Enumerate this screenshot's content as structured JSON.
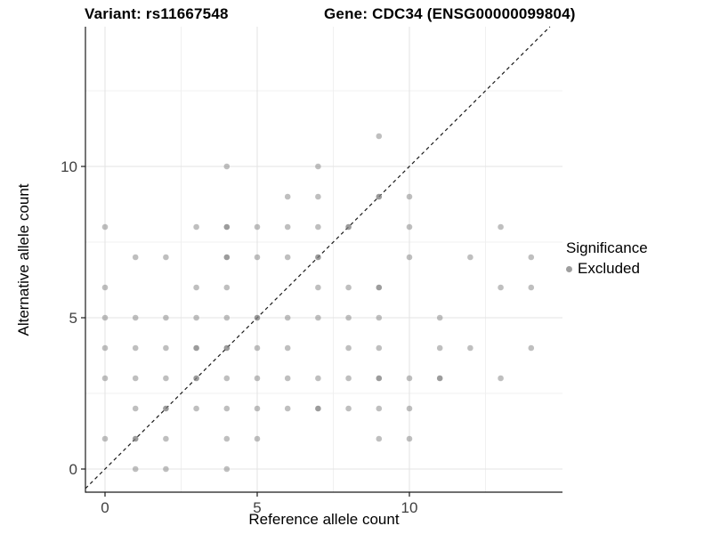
{
  "header": {
    "variant_title": "Variant: rs11667548",
    "gene_title": "Gene: CDC34 (ENSG00000099804)"
  },
  "legend": {
    "title": "Significance",
    "entries": [
      {
        "label": "Excluded",
        "color": "#9e9e9e"
      }
    ]
  },
  "colors": {
    "background": "#ffffff",
    "grid_major": "#e3e3e3",
    "grid_minor": "#f0f0f0",
    "axis_line": "#1a1a1a",
    "tick_text": "#404040",
    "identity_line": "#1a1a1a",
    "point": "#808080"
  },
  "chart_data": {
    "type": "scatter",
    "title_left": "Variant: rs11667548",
    "title_right": "Gene: CDC34 (ENSG00000099804)",
    "xlabel": "Reference allele count",
    "ylabel": "Alternative allele count",
    "xlim": [
      -0.64,
      15.04
    ],
    "ylim": [
      -0.76,
      14.62
    ],
    "x_tick_values": [
      0,
      5,
      10
    ],
    "y_tick_values": [
      0,
      5,
      10
    ],
    "x_minor_ticks": [
      2.5,
      7.5,
      12.5
    ],
    "y_minor_ticks": [
      2.5,
      7.5,
      12.5
    ],
    "grid": true,
    "legend_position": "right",
    "identity_line": {
      "equation": "y = x",
      "style": "dashed",
      "color": "#1a1a1a"
    },
    "series": [
      {
        "name": "Excluded",
        "color": "#808080",
        "opacity": 0.5,
        "points": [
          [
            1,
            0
          ],
          [
            2,
            0
          ],
          [
            4,
            0
          ],
          [
            0,
            1
          ],
          [
            1,
            1
          ],
          [
            2,
            1
          ],
          [
            4,
            1
          ],
          [
            5,
            1
          ],
          [
            9,
            1
          ],
          [
            10,
            1
          ],
          [
            1,
            2
          ],
          [
            2,
            2
          ],
          [
            3,
            2
          ],
          [
            4,
            2
          ],
          [
            5,
            2
          ],
          [
            6,
            2
          ],
          [
            7,
            2
          ],
          [
            8,
            2
          ],
          [
            9,
            2
          ],
          [
            10,
            2
          ],
          [
            0,
            3
          ],
          [
            1,
            3
          ],
          [
            2,
            3
          ],
          [
            3,
            3
          ],
          [
            4,
            3
          ],
          [
            5,
            3
          ],
          [
            6,
            3
          ],
          [
            7,
            3
          ],
          [
            8,
            3
          ],
          [
            9,
            3
          ],
          [
            10,
            3
          ],
          [
            11,
            3
          ],
          [
            13,
            3
          ],
          [
            0,
            4
          ],
          [
            1,
            4
          ],
          [
            2,
            4
          ],
          [
            3,
            4
          ],
          [
            4,
            4
          ],
          [
            5,
            4
          ],
          [
            6,
            4
          ],
          [
            8,
            4
          ],
          [
            9,
            4
          ],
          [
            11,
            4
          ],
          [
            12,
            4
          ],
          [
            14,
            4
          ],
          [
            0,
            5
          ],
          [
            1,
            5
          ],
          [
            2,
            5
          ],
          [
            3,
            5
          ],
          [
            4,
            5
          ],
          [
            5,
            5
          ],
          [
            6,
            5
          ],
          [
            7,
            5
          ],
          [
            8,
            5
          ],
          [
            9,
            5
          ],
          [
            11,
            5
          ],
          [
            0,
            6
          ],
          [
            3,
            6
          ],
          [
            4,
            6
          ],
          [
            7,
            6
          ],
          [
            8,
            6
          ],
          [
            9,
            6
          ],
          [
            13,
            6
          ],
          [
            14,
            6
          ],
          [
            1,
            7
          ],
          [
            2,
            7
          ],
          [
            4,
            7
          ],
          [
            5,
            7
          ],
          [
            6,
            7
          ],
          [
            7,
            7
          ],
          [
            10,
            7
          ],
          [
            12,
            7
          ],
          [
            14,
            7
          ],
          [
            0,
            8
          ],
          [
            3,
            8
          ],
          [
            4,
            8
          ],
          [
            5,
            8
          ],
          [
            6,
            8
          ],
          [
            7,
            8
          ],
          [
            8,
            8
          ],
          [
            10,
            8
          ],
          [
            13,
            8
          ],
          [
            6,
            9
          ],
          [
            7,
            9
          ],
          [
            9,
            9
          ],
          [
            10,
            9
          ],
          [
            4,
            10
          ],
          [
            7,
            10
          ],
          [
            9,
            11
          ]
        ]
      }
    ],
    "darker_points": [
      [
        1,
        1
      ],
      [
        2,
        2
      ],
      [
        3,
        3
      ],
      [
        5,
        5
      ],
      [
        7,
        7
      ],
      [
        8,
        8
      ],
      [
        9,
        9
      ],
      [
        3,
        4
      ],
      [
        4,
        4
      ],
      [
        4,
        7
      ],
      [
        4,
        8
      ],
      [
        9,
        6
      ],
      [
        9,
        3
      ],
      [
        11,
        3
      ],
      [
        7,
        2
      ]
    ],
    "point_opacity": 0.5,
    "point_opacity_dark": 0.78
  }
}
